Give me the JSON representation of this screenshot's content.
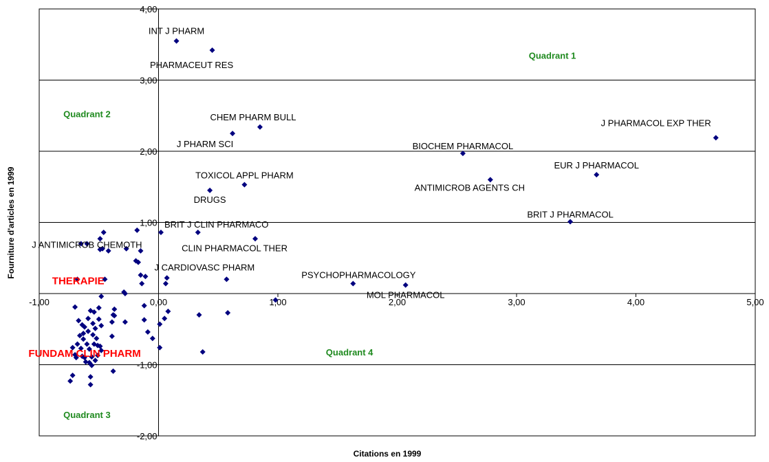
{
  "colors": {
    "marker": "#00007f",
    "quadrant_text": "#1f8a1f",
    "highlight_text": "#ff0000",
    "grid": "#000000"
  },
  "chart_data": {
    "type": "scatter",
    "xlabel": "Citations en 1999",
    "ylabel": "Fourniture d'articles en 1999",
    "xlim": [
      -1,
      5
    ],
    "ylim": [
      -2,
      4
    ],
    "x_ticks": [
      "-1,00",
      "0,00",
      "1,00",
      "2,00",
      "3,00",
      "4,00",
      "5,00"
    ],
    "y_ticks": [
      "-2,00",
      "-1,00",
      "1,00",
      "2,00",
      "3,00",
      "4,00"
    ],
    "grid": "horizontal",
    "marker": "diamond",
    "labeled_points": [
      {
        "name": "INT J PHARM",
        "x": 0.15,
        "y": 3.55
      },
      {
        "name": "PHARMACEUT RES",
        "x": 0.45,
        "y": 3.42
      },
      {
        "name": "CHEM PHARM BULL",
        "x": 0.85,
        "y": 2.34
      },
      {
        "name": "J PHARM SCI",
        "x": 0.62,
        "y": 2.25
      },
      {
        "name": "J PHARMACOL EXP THER",
        "x": 4.67,
        "y": 2.19
      },
      {
        "name": "BIOCHEM PHARMACOL",
        "x": 2.55,
        "y": 1.97
      },
      {
        "name": "EUR J PHARMACOL",
        "x": 3.67,
        "y": 1.67
      },
      {
        "name": "ANTIMICROB AGENTS CH",
        "x": 2.78,
        "y": 1.6
      },
      {
        "name": "TOXICOL APPL PHARM",
        "x": 0.72,
        "y": 1.53
      },
      {
        "name": "DRUGS",
        "x": 0.43,
        "y": 1.45
      },
      {
        "name": "BRIT J PHARMACOL",
        "x": 3.45,
        "y": 1.01
      },
      {
        "name": "BRIT J CLIN PHARMACO",
        "x": 0.02,
        "y": 0.86
      },
      {
        "name": "CLIN PHARMACOL THER",
        "x": 0.81,
        "y": 0.77
      },
      {
        "name": "J ANTIMICROB CHEMOTH",
        "x": -0.6,
        "y": 0.7
      },
      {
        "name": "J CARDIOVASC PHARM",
        "x": 0.57,
        "y": 0.2
      },
      {
        "name": "PSYCHOPHARMACOLOGY",
        "x": 1.63,
        "y": 0.14
      },
      {
        "name": "MOL PHARMACOL",
        "x": 2.07,
        "y": 0.12
      },
      {
        "name": "THERAPIE",
        "x": -0.65,
        "y": 0.2,
        "highlight": true
      },
      {
        "name": "FUNDAM CLIN PHARM",
        "x": -0.55,
        "y": -0.8,
        "highlight": true
      }
    ],
    "points": [
      [
        0.33,
        0.86
      ],
      [
        0.98,
        -0.09
      ],
      [
        0.58,
        -0.27
      ],
      [
        0.34,
        -0.3
      ],
      [
        0.37,
        -0.82
      ],
      [
        0.08,
        -0.25
      ],
      [
        0.05,
        -0.35
      ],
      [
        0.07,
        0.22
      ],
      [
        0.06,
        0.14
      ],
      [
        0.01,
        -0.43
      ],
      [
        0.01,
        -0.76
      ],
      [
        -0.05,
        -0.63
      ],
      [
        -0.09,
        -0.54
      ],
      [
        -0.12,
        -0.17
      ],
      [
        -0.12,
        -0.37
      ],
      [
        -0.11,
        0.24
      ],
      [
        -0.14,
        0.14
      ],
      [
        -0.15,
        0.26
      ],
      [
        -0.15,
        0.6
      ],
      [
        -0.17,
        0.44
      ],
      [
        -0.18,
        0.89
      ],
      [
        -0.19,
        0.46
      ],
      [
        -0.27,
        0.63
      ],
      [
        -0.28,
        0.0
      ],
      [
        -0.28,
        -0.4
      ],
      [
        -0.29,
        0.02
      ],
      [
        -0.37,
        -0.22
      ],
      [
        -0.37,
        -0.31
      ],
      [
        -0.38,
        -1.09
      ],
      [
        -0.38,
        -0.3
      ],
      [
        -0.39,
        -0.4
      ],
      [
        -0.39,
        -0.6
      ],
      [
        -0.42,
        0.6
      ],
      [
        -0.45,
        0.2
      ],
      [
        -0.46,
        0.86
      ],
      [
        -0.47,
        0.63
      ],
      [
        -0.48,
        -0.04
      ],
      [
        -0.48,
        -0.45
      ],
      [
        -0.48,
        -0.8
      ],
      [
        -0.49,
        0.77
      ],
      [
        -0.49,
        0.62
      ],
      [
        -0.49,
        -0.74
      ],
      [
        -0.5,
        -0.2
      ],
      [
        -0.5,
        -0.36
      ],
      [
        -0.51,
        -0.73
      ],
      [
        -0.51,
        -0.87
      ],
      [
        -0.52,
        -0.63
      ],
      [
        -0.53,
        -0.49
      ],
      [
        -0.53,
        -0.94
      ],
      [
        -0.54,
        -0.71
      ],
      [
        -0.54,
        -0.26
      ],
      [
        -0.55,
        -0.42
      ],
      [
        -0.55,
        -0.58
      ],
      [
        -0.56,
        -1.01
      ],
      [
        -0.56,
        -0.89
      ],
      [
        -0.57,
        -0.24
      ],
      [
        -0.57,
        -1.17
      ],
      [
        -0.57,
        -1.28
      ],
      [
        -0.58,
        -0.97
      ],
      [
        -0.58,
        -0.78
      ],
      [
        -0.59,
        -0.53
      ],
      [
        -0.59,
        -0.35
      ],
      [
        -0.6,
        -0.71
      ],
      [
        -0.61,
        -0.96
      ],
      [
        -0.62,
        -0.9
      ],
      [
        -0.62,
        -0.47
      ],
      [
        -0.63,
        -0.64
      ],
      [
        -0.63,
        -0.56
      ],
      [
        -0.64,
        -0.88
      ],
      [
        -0.64,
        -0.44
      ],
      [
        -0.65,
        0.7
      ],
      [
        -0.65,
        -0.77
      ],
      [
        -0.66,
        -0.59
      ],
      [
        -0.67,
        -0.38
      ],
      [
        -0.68,
        -0.71
      ],
      [
        -0.68,
        0.2
      ],
      [
        -0.69,
        -0.9
      ],
      [
        -0.7,
        -0.86
      ],
      [
        -0.7,
        -0.19
      ],
      [
        -0.72,
        -0.76
      ],
      [
        -0.72,
        -1.15
      ],
      [
        -0.74,
        -1.23
      ]
    ],
    "quadrant_labels": [
      {
        "text": "Quadrant 1",
        "x": 3.3,
        "y": 3.3
      },
      {
        "text": "Quadrant 2",
        "x": -0.6,
        "y": 2.48
      },
      {
        "text": "Quadrant 3",
        "x": -0.6,
        "y": -1.75
      },
      {
        "text": "Quadrant 4",
        "x": 1.6,
        "y": -0.87
      }
    ]
  }
}
